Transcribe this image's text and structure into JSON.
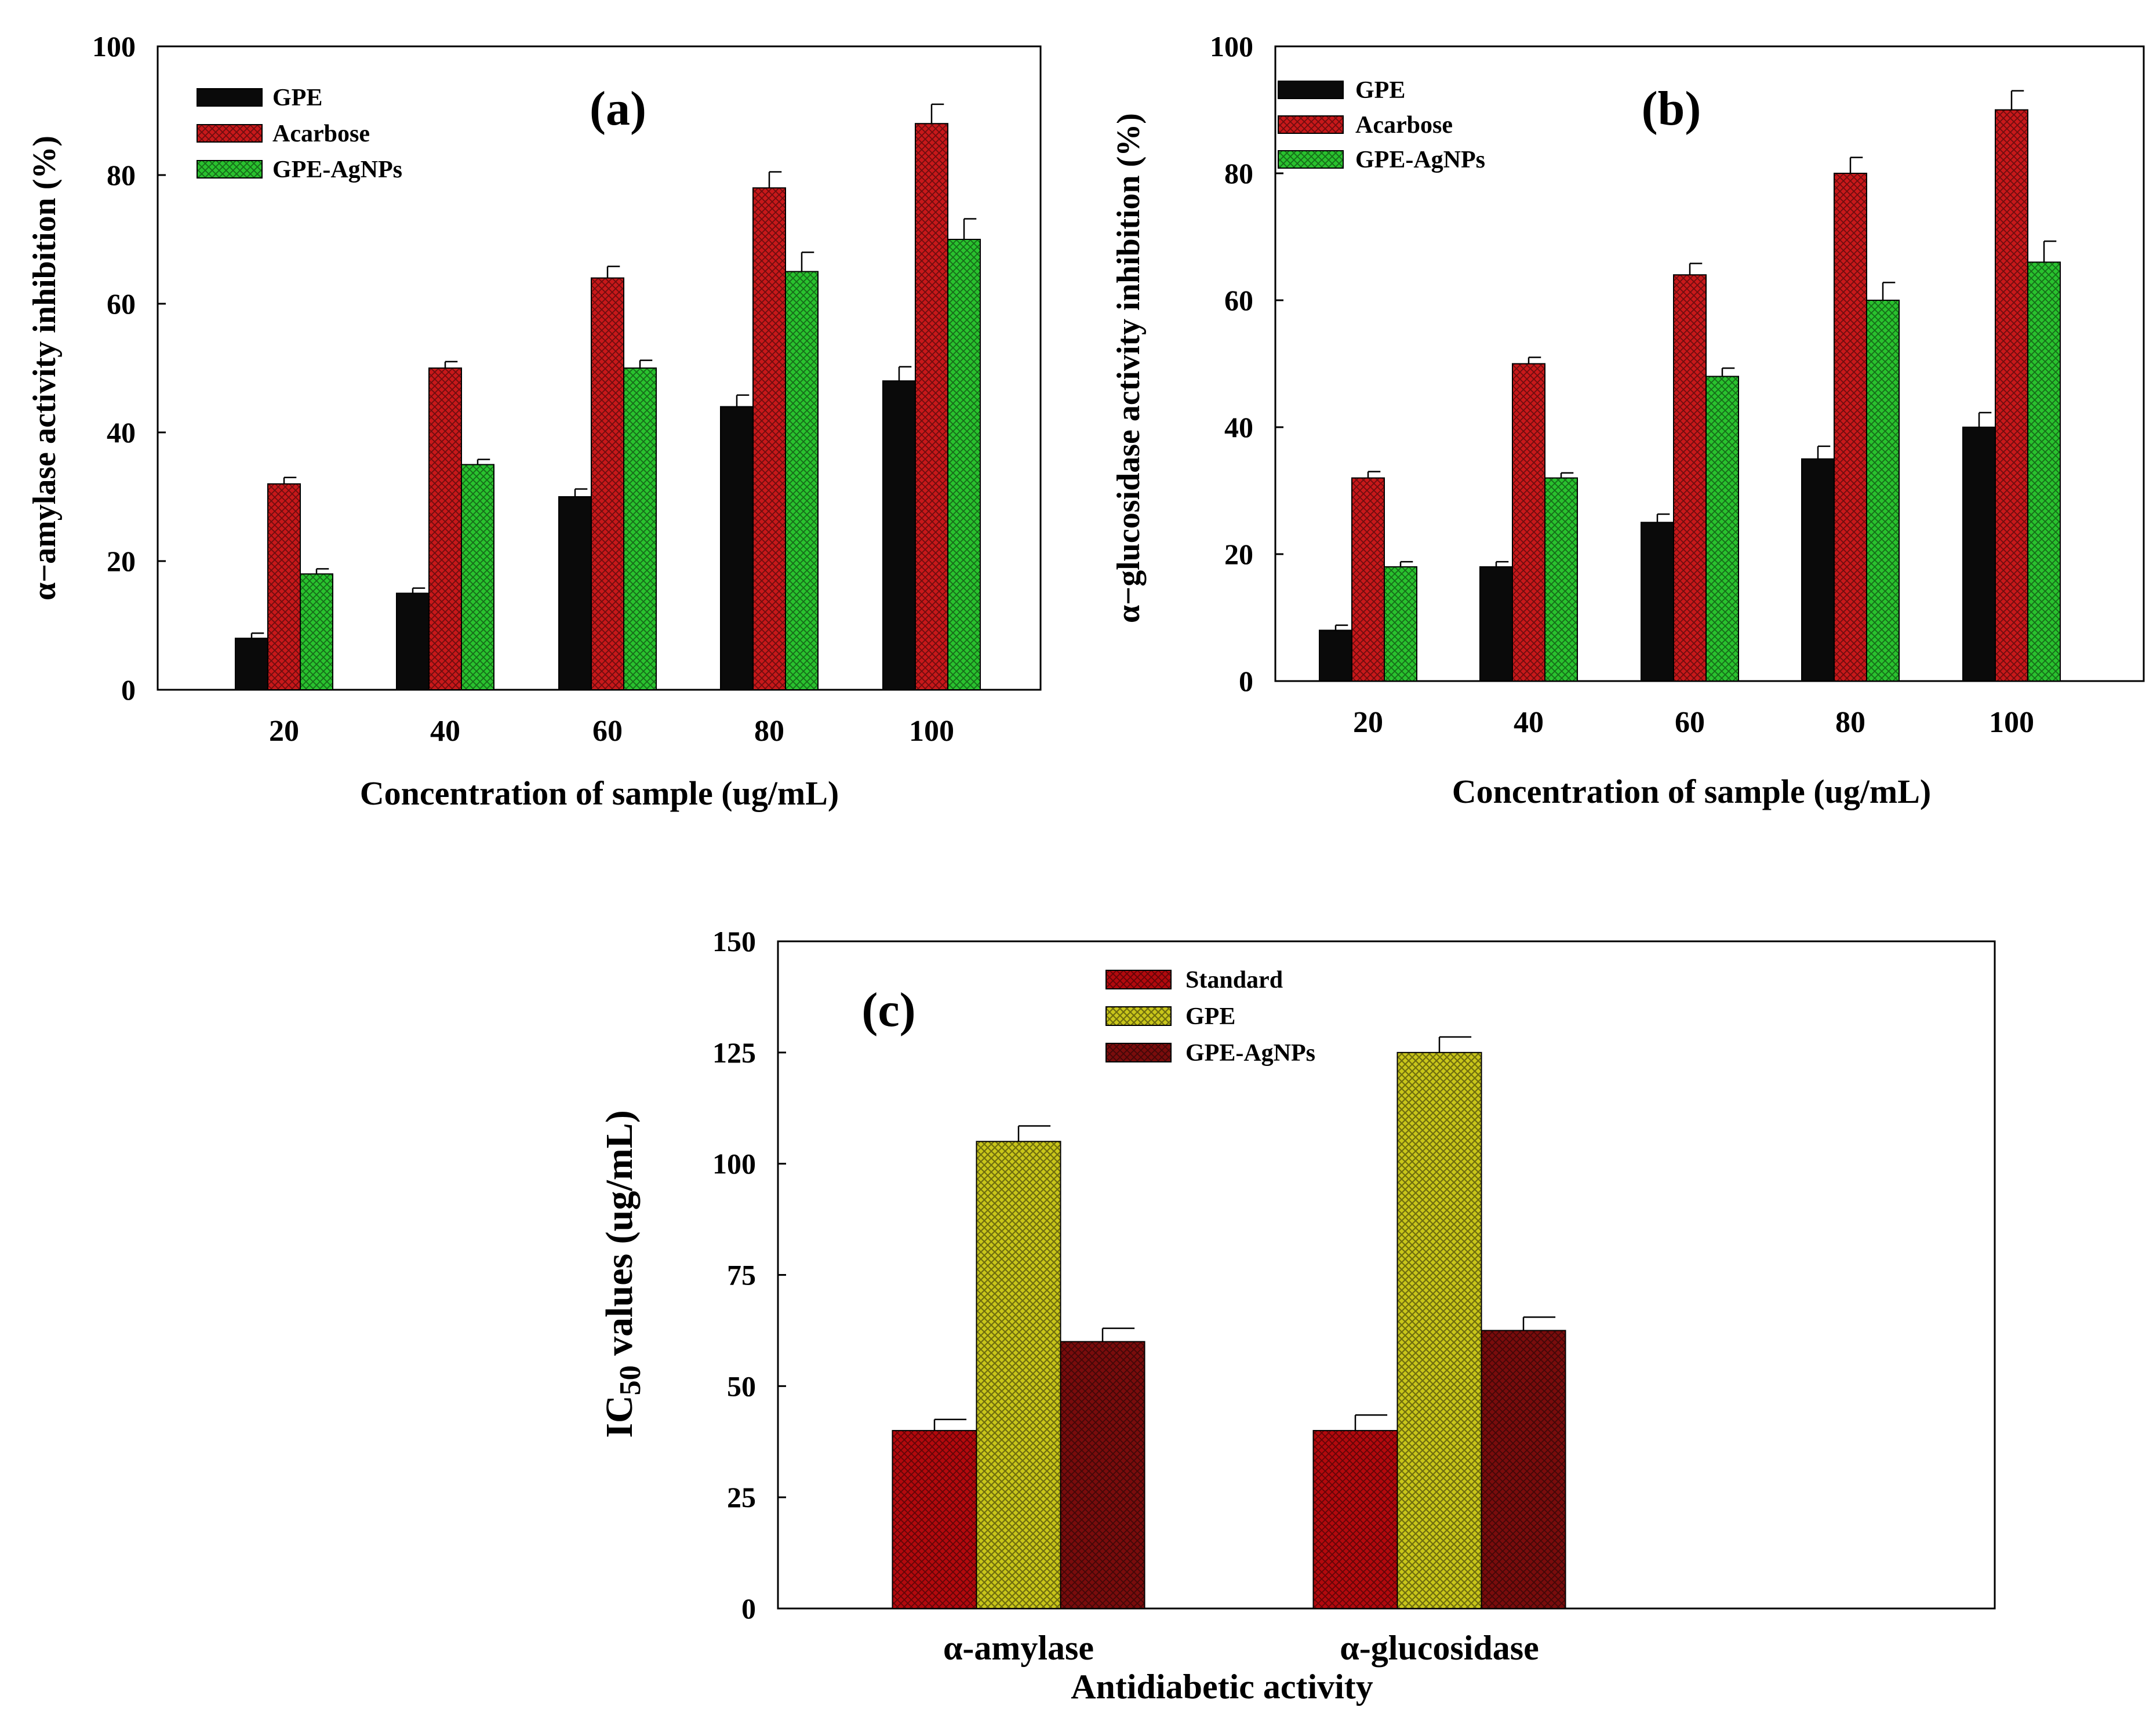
{
  "figure": {
    "panels": [
      "(a)",
      "(b)",
      "(c)"
    ]
  },
  "colors": {
    "GPE_black": "#0a0a0a",
    "Acarbose_red": "#c8181a",
    "GPE-AgNPs_green": "#29c22e",
    "Standard_red": "#b3090d",
    "GPE_yellow": "#c9c61a",
    "GPE-AgNPs_maroon": "#7a0c0c"
  },
  "chart_data": [
    {
      "id": "a",
      "panel_label": "(a)",
      "type": "bar",
      "title": "",
      "xlabel": "Concentration of sample (ug/mL)",
      "ylabel": "α−amylase activity inhibition (%)",
      "ylim": [
        0,
        100
      ],
      "yticks": [
        "0",
        "20",
        "40",
        "60",
        "80",
        "100"
      ],
      "categories": [
        "20",
        "40",
        "60",
        "80",
        "100"
      ],
      "legend_position": "top-left",
      "series": [
        {
          "name": "GPE",
          "color": "#0a0a0a",
          "pattern": "solid",
          "values": [
            8,
            15,
            30,
            44,
            48
          ],
          "errors": [
            0.8,
            0.8,
            1.2,
            1.8,
            2.2
          ]
        },
        {
          "name": "Acarbose",
          "color": "#c8181a",
          "pattern": "cross",
          "values": [
            32,
            50,
            64,
            78,
            88
          ],
          "errors": [
            1.0,
            1.0,
            1.8,
            2.5,
            3.0
          ]
        },
        {
          "name": "GPE-AgNPs",
          "color": "#29c22e",
          "pattern": "cross",
          "values": [
            18,
            35,
            50,
            65,
            70
          ],
          "errors": [
            0.8,
            0.8,
            1.2,
            3.0,
            3.2
          ]
        }
      ]
    },
    {
      "id": "b",
      "panel_label": "(b)",
      "type": "bar",
      "title": "",
      "xlabel": "Concentration of sample (ug/mL)",
      "ylabel": "α−glucosidase activity inhibition (%)",
      "ylim": [
        0,
        100
      ],
      "yticks": [
        "0",
        "20",
        "40",
        "60",
        "80",
        "100"
      ],
      "categories": [
        "20",
        "40",
        "60",
        "80",
        "100"
      ],
      "legend_position": "top-left",
      "series": [
        {
          "name": "GPE",
          "color": "#0a0a0a",
          "pattern": "solid",
          "values": [
            8,
            18,
            25,
            35,
            40
          ],
          "errors": [
            0.8,
            0.8,
            1.3,
            2.0,
            2.3
          ]
        },
        {
          "name": "Acarbose",
          "color": "#c8181a",
          "pattern": "cross",
          "values": [
            32,
            50,
            64,
            80,
            90
          ],
          "errors": [
            1.0,
            1.0,
            1.8,
            2.5,
            3.0
          ]
        },
        {
          "name": "GPE-AgNPs",
          "color": "#29c22e",
          "pattern": "cross",
          "values": [
            18,
            32,
            48,
            60,
            66
          ],
          "errors": [
            0.8,
            0.8,
            1.3,
            2.8,
            3.3
          ]
        }
      ]
    },
    {
      "id": "c",
      "panel_label": "(c)",
      "type": "bar",
      "title": "",
      "xlabel": "Antidiabetic activity",
      "ylabel": "IC50 values (ug/mL)",
      "ylim": [
        0,
        150
      ],
      "yticks": [
        "0",
        "25",
        "50",
        "75",
        "100",
        "125",
        "150"
      ],
      "categories": [
        "α-amylase",
        "α-glucosidase"
      ],
      "legend_position": "top-center",
      "series": [
        {
          "name": "Standard",
          "color": "#b3090d",
          "pattern": "cross",
          "values": [
            40,
            40
          ],
          "errors": [
            2.5,
            3.5
          ]
        },
        {
          "name": "GPE",
          "color": "#c9c61a",
          "pattern": "diamond",
          "values": [
            105,
            125
          ],
          "errors": [
            3.5,
            3.5
          ]
        },
        {
          "name": "GPE-AgNPs",
          "color": "#7a0c0c",
          "pattern": "cross",
          "values": [
            60,
            62.5
          ],
          "errors": [
            3.0,
            3.0
          ]
        }
      ]
    }
  ]
}
